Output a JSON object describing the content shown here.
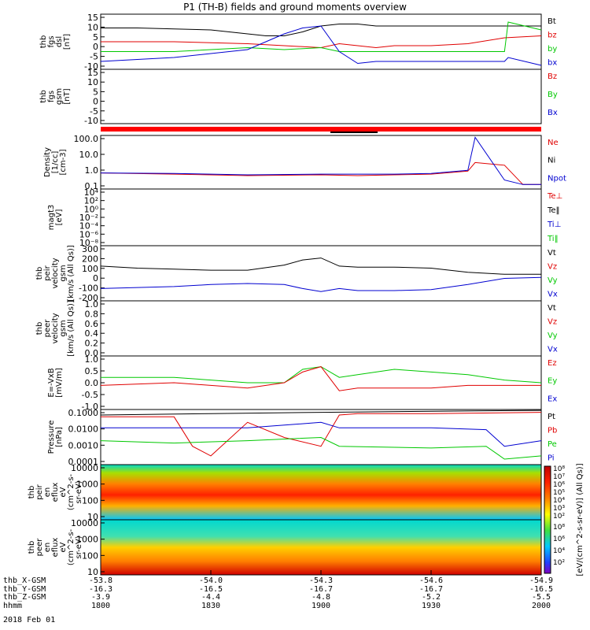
{
  "title": "P1 (TH-B) fields and ground moments overview",
  "date": "2018 Feb 01",
  "colors": {
    "black": "#000000",
    "red": "#e00000",
    "green": "#00c800",
    "blue": "#0000d0"
  },
  "panels": [
    {
      "id": "fgs_dsl",
      "ylabel": "thb\nfgs\ndsl\n[nT]",
      "yticks": [
        "15",
        "10",
        "5",
        "0",
        "-5",
        "-10"
      ],
      "legend": [
        {
          "text": "Bt",
          "color": "black"
        },
        {
          "text": "bz",
          "color": "red"
        },
        {
          "text": "by",
          "color": "green"
        },
        {
          "text": "bx",
          "color": "blue"
        }
      ]
    },
    {
      "id": "fgs_gsm",
      "ylabel": "thb\nfgs\ngsm\n[nT]",
      "yticks": [
        "15",
        "10",
        "5",
        "0",
        "-5",
        "-10"
      ],
      "legend": [
        {
          "text": "Bz",
          "color": "red"
        },
        {
          "text": "By",
          "color": "green"
        },
        {
          "text": "Bx",
          "color": "blue"
        }
      ]
    },
    {
      "id": "density",
      "ylabel": "Density\n[1/cc]\n[cm-3]",
      "yticks": [
        "100.0",
        "10.0",
        "1.0",
        "0.1"
      ],
      "legend": [
        {
          "text": "Ne",
          "color": "red"
        },
        {
          "text": "Ni",
          "color": "black"
        },
        {
          "text": "Npot",
          "color": "blue"
        }
      ]
    },
    {
      "id": "temp",
      "ylabel": "magt3\n[eV]",
      "yticks": [
        "10⁴",
        "10²",
        "10⁰",
        "10⁻²",
        "10⁻⁴",
        "10⁻⁶",
        "10⁻⁸"
      ],
      "legend": [
        {
          "text": "Te⊥",
          "color": "red"
        },
        {
          "text": "Te‖",
          "color": "black"
        },
        {
          "text": "Ti⊥",
          "color": "blue"
        },
        {
          "text": "Ti‖",
          "color": "green"
        }
      ]
    },
    {
      "id": "peir_vel",
      "ylabel": "thb\npeir\nvelocity\ngsm\n[km/s (All Qs)]",
      "yticks": [
        "300",
        "200",
        "100",
        "0",
        "-100",
        "-200"
      ],
      "legend": [
        {
          "text": "Vt",
          "color": "black"
        },
        {
          "text": "Vz",
          "color": "red"
        },
        {
          "text": "Vy",
          "color": "green"
        },
        {
          "text": "Vx",
          "color": "blue"
        }
      ]
    },
    {
      "id": "peer_vel",
      "ylabel": "thb\npeer\nvelocity\ngsm\n[km/s (All Qs)]",
      "yticks": [
        "1.0",
        "0.8",
        "0.6",
        "0.4",
        "0.2",
        "0.0"
      ],
      "legend": [
        {
          "text": "Vt",
          "color": "black"
        },
        {
          "text": "Vz",
          "color": "red"
        },
        {
          "text": "Vy",
          "color": "green"
        },
        {
          "text": "Vx",
          "color": "blue"
        }
      ]
    },
    {
      "id": "efield",
      "ylabel": "E=-VxB\n[mV/m]",
      "yticks": [
        "1.0",
        "0.5",
        "0.0",
        "-0.5",
        "-1.0"
      ],
      "legend": [
        {
          "text": "Ez",
          "color": "red"
        },
        {
          "text": "Ey",
          "color": "green"
        },
        {
          "text": "Ex",
          "color": "blue"
        }
      ]
    },
    {
      "id": "pressure",
      "ylabel": "Pressure\n[nPa]",
      "yticks": [
        "0.1000",
        "0.0100",
        "0.0010",
        "0.0001"
      ],
      "legend": [
        {
          "text": "Pt",
          "color": "black"
        },
        {
          "text": "Pb",
          "color": "red"
        },
        {
          "text": "Pe",
          "color": "green"
        },
        {
          "text": "Pi",
          "color": "blue"
        }
      ]
    },
    {
      "id": "peir_eflux",
      "ylabel": "thb\npeir\nen\neflux\neV\n(cm^2-s-\nsr-eV)",
      "yticks": [
        "10000",
        "1000",
        "100",
        "10"
      ],
      "legend": []
    },
    {
      "id": "peer_eflux",
      "ylabel": "thb\npeer\nen\neflux\neV\n(cm^2-s-\nsr-eV)",
      "yticks": [
        "10000",
        "1000",
        "100",
        "10"
      ],
      "legend": []
    }
  ],
  "colorbar": {
    "ticks_top": [
      "10⁸",
      "10⁷",
      "10⁶",
      "10⁵",
      "10⁴",
      "10³",
      "10²"
    ],
    "ticks_bottom": [
      "10⁸",
      "10⁶",
      "10⁴",
      "10²"
    ],
    "label": "[eV/(cm^2-s-sr-eV)] (All Qs)]"
  },
  "ephemeris": {
    "labels": [
      "thb_X-GSM",
      "thb_Y-GSM",
      "thb_Z-GSM",
      "hhmm"
    ],
    "columns": [
      {
        "x": "-53.8",
        "y": "-16.3",
        "z": "-3.9",
        "t": "1800"
      },
      {
        "x": "-54.0",
        "y": "-16.5",
        "z": "-4.4",
        "t": "1830"
      },
      {
        "x": "-54.3",
        "y": "-16.7",
        "z": "-4.8",
        "t": "1900"
      },
      {
        "x": "-54.6",
        "y": "-16.7",
        "z": "-5.2",
        "t": "1930"
      },
      {
        "x": "-54.9",
        "y": "-16.5",
        "z": "-5.5",
        "t": "2000"
      }
    ]
  },
  "chart_data": {
    "type": "line",
    "title": "P1 (TH-B) fields and ground moments overview",
    "x_ticks": [
      "1800",
      "1830",
      "1900",
      "1930",
      "2000"
    ],
    "xlim": [
      "18:00",
      "20:00"
    ],
    "series": [
      {
        "panel": "fgs_dsl",
        "name": "Bt",
        "color": "black",
        "x": [
          0,
          10,
          20,
          30,
          40,
          45,
          50,
          55,
          60,
          65,
          70,
          75,
          80,
          85,
          90,
          95,
          100,
          105,
          110,
          115,
          120
        ],
        "values": [
          9,
          9,
          8.5,
          8,
          6,
          5,
          5,
          7,
          10,
          11,
          11,
          10,
          10,
          10,
          10,
          10,
          10,
          10,
          10,
          10,
          10
        ]
      },
      {
        "panel": "fgs_dsl",
        "name": "bz",
        "color": "red",
        "x": [
          0,
          20,
          40,
          50,
          60,
          65,
          70,
          75,
          80,
          90,
          100,
          110,
          120
        ],
        "values": [
          2,
          2,
          1,
          0,
          -1,
          1,
          0,
          -1,
          0,
          0,
          1,
          4,
          5
        ]
      },
      {
        "panel": "fgs_dsl",
        "name": "by",
        "color": "green",
        "x": [
          0,
          20,
          40,
          50,
          60,
          65,
          70,
          75,
          80,
          90,
          100,
          110,
          111,
          120
        ],
        "values": [
          -3,
          -3,
          -1,
          -2,
          -1,
          -3,
          -3,
          -3,
          -3,
          -3,
          -3,
          -3,
          12,
          8
        ]
      },
      {
        "panel": "fgs_dsl",
        "name": "bx",
        "color": "blue",
        "x": [
          0,
          20,
          40,
          45,
          50,
          55,
          60,
          65,
          70,
          75,
          80,
          90,
          100,
          110,
          111,
          120
        ],
        "values": [
          -8,
          -6,
          -2,
          2,
          6,
          9,
          10,
          -3,
          -9,
          -8,
          -8,
          -8,
          -8,
          -8,
          -6,
          -10
        ]
      },
      {
        "panel": "density",
        "name": "Ne",
        "color": "red",
        "x": [
          0,
          20,
          40,
          60,
          70,
          80,
          90,
          100,
          102,
          110,
          115,
          120
        ],
        "values": [
          0.6,
          0.5,
          0.4,
          0.45,
          0.4,
          0.45,
          0.5,
          0.8,
          3,
          2,
          0.1,
          0.1
        ]
      },
      {
        "panel": "density",
        "name": "Npot",
        "color": "blue",
        "x": [
          0,
          20,
          40,
          60,
          70,
          80,
          90,
          100,
          102,
          110,
          115,
          120
        ],
        "values": [
          0.6,
          0.55,
          0.45,
          0.5,
          0.5,
          0.5,
          0.55,
          0.9,
          150,
          0.2,
          0.1,
          0.1
        ]
      },
      {
        "panel": "peir_vel",
        "name": "Vt",
        "color": "black",
        "x": [
          0,
          10,
          20,
          30,
          40,
          50,
          55,
          60,
          65,
          70,
          80,
          90,
          100,
          110,
          120
        ],
        "values": [
          120,
          100,
          90,
          80,
          80,
          130,
          180,
          200,
          120,
          110,
          110,
          100,
          60,
          40,
          40
        ]
      },
      {
        "panel": "peir_vel",
        "name": "Vx",
        "color": "blue",
        "x": [
          0,
          10,
          20,
          30,
          40,
          50,
          55,
          60,
          65,
          70,
          80,
          90,
          100,
          110,
          120
        ],
        "values": [
          -100,
          -90,
          -80,
          -60,
          -50,
          -60,
          -100,
          -130,
          -100,
          -120,
          -120,
          -110,
          -60,
          0,
          10
        ]
      },
      {
        "panel": "efield",
        "name": "Ey",
        "color": "green",
        "x": [
          0,
          20,
          40,
          50,
          55,
          60,
          65,
          70,
          80,
          90,
          100,
          110,
          120
        ],
        "values": [
          0.2,
          0.2,
          0,
          0,
          0.5,
          0.6,
          0.2,
          0.3,
          0.5,
          0.4,
          0.3,
          0.1,
          0
        ]
      },
      {
        "panel": "efield",
        "name": "Ez",
        "color": "red",
        "x": [
          0,
          20,
          40,
          50,
          55,
          60,
          65,
          70,
          80,
          90,
          100,
          110,
          120
        ],
        "values": [
          -0.1,
          0,
          -0.2,
          0,
          0.4,
          0.6,
          -0.3,
          -0.2,
          -0.2,
          -0.2,
          -0.1,
          -0.1,
          -0.1
        ]
      },
      {
        "panel": "pressure",
        "name": "Pt",
        "color": "black",
        "x": [
          0,
          30,
          60,
          90,
          120
        ],
        "values": [
          0.05,
          0.06,
          0.07,
          0.08,
          0.09
        ]
      },
      {
        "panel": "pressure",
        "name": "Pb",
        "color": "red",
        "x": [
          0,
          20,
          25,
          30,
          40,
          50,
          60,
          65,
          70,
          90,
          120
        ],
        "values": [
          0.04,
          0.04,
          0.001,
          0.0003,
          0.02,
          0.003,
          0.001,
          0.05,
          0.06,
          0.06,
          0.07
        ]
      },
      {
        "panel": "pressure",
        "name": "Pe",
        "color": "green",
        "x": [
          0,
          20,
          40,
          60,
          65,
          90,
          105,
          110,
          120
        ],
        "values": [
          0.002,
          0.0015,
          0.002,
          0.003,
          0.001,
          0.0008,
          0.001,
          0.0002,
          0.0003
        ]
      },
      {
        "panel": "pressure",
        "name": "Pi",
        "color": "blue",
        "x": [
          0,
          20,
          40,
          60,
          65,
          90,
          105,
          110,
          120
        ],
        "values": [
          0.01,
          0.01,
          0.01,
          0.02,
          0.01,
          0.01,
          0.008,
          0.001,
          0.002
        ]
      }
    ]
  }
}
